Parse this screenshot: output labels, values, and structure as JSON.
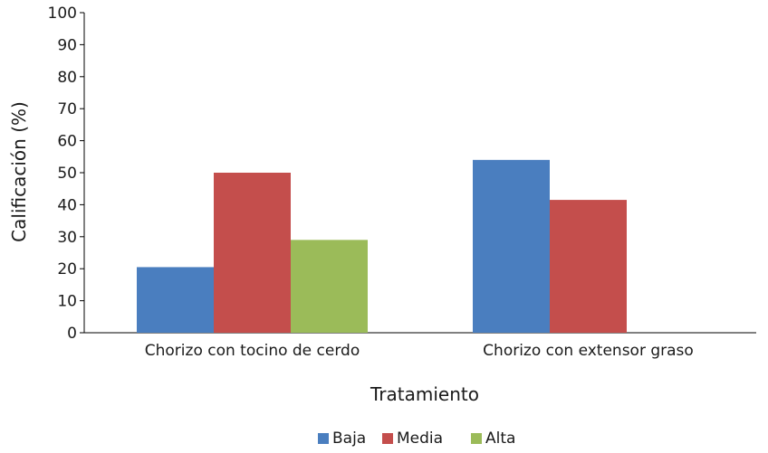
{
  "chart_data": {
    "type": "bar",
    "title": "",
    "xlabel": "Tratamiento",
    "ylabel": "Calificación (%)",
    "ylim": [
      0,
      100
    ],
    "yticks": [
      0,
      10,
      20,
      30,
      40,
      50,
      60,
      70,
      80,
      90,
      100
    ],
    "categories": [
      "Chorizo con tocino de cerdo",
      "Chorizo con extensor graso"
    ],
    "series": [
      {
        "name": "Baja",
        "color": "#4a7ebf",
        "values": [
          20.5,
          54
        ]
      },
      {
        "name": "Media",
        "color": "#c44e4c",
        "values": [
          50,
          41.5
        ]
      },
      {
        "name": "Alta",
        "color": "#9bbb59",
        "values": [
          29,
          null
        ]
      }
    ],
    "grid": false,
    "legend": "bottom"
  }
}
